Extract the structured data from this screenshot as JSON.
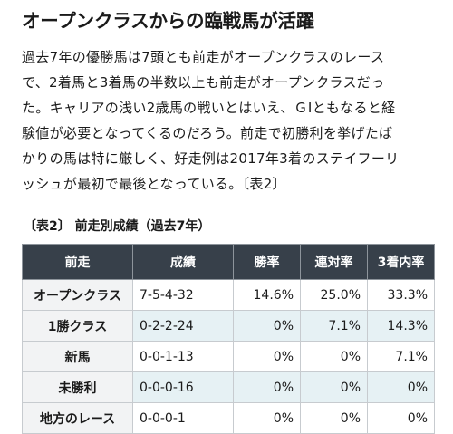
{
  "article": {
    "headline": "オープンクラスからの臨戦馬が活躍",
    "paragraph_lines": [
      "過去7年の優勝馬は7頭とも前走がオープンクラスのレース",
      "で、2着馬と3着馬の半数以上も前走がオープンクラスだっ",
      "た。キャリアの浅い2歳馬の戦いとはいえ、ＧⅠともなると経",
      "験値が必要となってくるのだろう。前走で初勝利を挙げたば",
      "かりの馬は特に厳しく、好走例は2017年3着のステイフーリ",
      "ッシュが最初で最後となっている。〔表2〕"
    ]
  },
  "table": {
    "caption": "〔表2〕 前走別成績（過去7年）",
    "headers": [
      "前走",
      "成績",
      "勝率",
      "連対率",
      "3着内率"
    ],
    "rows": [
      {
        "race": "オープンクラス",
        "record": "7-5-4-32",
        "win_rate": "14.6%",
        "quinella_rate": "25.0%",
        "top3_rate": "33.3%"
      },
      {
        "race": "1勝クラス",
        "record": "0-2-2-24",
        "win_rate": "0%",
        "quinella_rate": "7.1%",
        "top3_rate": "14.3%"
      },
      {
        "race": "新馬",
        "record": "0-0-1-13",
        "win_rate": "0%",
        "quinella_rate": "0%",
        "top3_rate": "7.1%"
      },
      {
        "race": "未勝利",
        "record": "0-0-0-16",
        "win_rate": "0%",
        "quinella_rate": "0%",
        "top3_rate": "0%"
      },
      {
        "race": "地方のレース",
        "record": "0-0-0-1",
        "win_rate": "0%",
        "quinella_rate": "0%",
        "top3_rate": "0%"
      }
    ]
  }
}
